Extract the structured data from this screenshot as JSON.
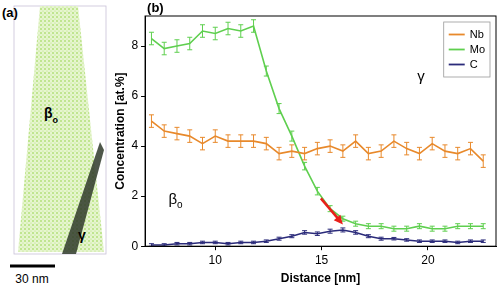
{
  "panel_a": {
    "label": "(a)",
    "phase_labels": [
      "βo",
      "γ"
    ],
    "scale_bar": "30 nm"
  },
  "chart_data": {
    "type": "line",
    "panel_label": "(b)",
    "x_label": "Distance [nm]",
    "y_label": "Concentration [at.%]",
    "x": [
      7.0,
      7.6,
      8.2,
      8.8,
      9.4,
      10.0,
      10.6,
      11.2,
      11.8,
      12.4,
      13.0,
      13.6,
      14.2,
      14.8,
      15.4,
      16.0,
      16.6,
      17.2,
      17.8,
      18.4,
      19.0,
      19.6,
      20.2,
      20.8,
      21.4,
      22.0,
      22.6
    ],
    "series": [
      {
        "name": "Nb",
        "color": "#e8892b",
        "values": [
          5.0,
          4.6,
          4.5,
          4.4,
          4.1,
          4.4,
          4.2,
          4.2,
          4.2,
          4.1,
          3.7,
          3.8,
          3.7,
          3.9,
          4.0,
          3.8,
          4.2,
          3.7,
          3.8,
          4.2,
          3.9,
          3.7,
          4.1,
          3.8,
          3.7,
          3.9,
          3.4
        ],
        "errors": [
          0.25,
          0.25,
          0.25,
          0.25,
          0.25,
          0.25,
          0.25,
          0.25,
          0.25,
          0.25,
          0.25,
          0.25,
          0.25,
          0.25,
          0.25,
          0.25,
          0.25,
          0.25,
          0.25,
          0.25,
          0.25,
          0.25,
          0.25,
          0.25,
          0.25,
          0.25,
          0.25
        ]
      },
      {
        "name": "Mo",
        "color": "#5fcf4f",
        "values": [
          8.3,
          7.9,
          8.0,
          8.1,
          8.6,
          8.5,
          8.7,
          8.6,
          8.8,
          7.0,
          5.5,
          4.4,
          3.2,
          2.2,
          1.5,
          1.1,
          0.9,
          0.8,
          0.8,
          0.7,
          0.7,
          0.8,
          0.7,
          0.7,
          0.8,
          0.8,
          0.8
        ],
        "errors": [
          0.25,
          0.25,
          0.25,
          0.25,
          0.25,
          0.25,
          0.25,
          0.25,
          0.25,
          0.2,
          0.2,
          0.2,
          0.15,
          0.15,
          0.12,
          0.1,
          0.1,
          0.1,
          0.1,
          0.1,
          0.1,
          0.1,
          0.1,
          0.1,
          0.1,
          0.1,
          0.1
        ]
      },
      {
        "name": "C",
        "color": "#2b2b7a",
        "values": [
          0.05,
          0.05,
          0.1,
          0.1,
          0.15,
          0.15,
          0.1,
          0.15,
          0.15,
          0.2,
          0.3,
          0.4,
          0.55,
          0.5,
          0.6,
          0.65,
          0.55,
          0.4,
          0.3,
          0.3,
          0.25,
          0.2,
          0.2,
          0.2,
          0.15,
          0.2,
          0.2
        ],
        "errors": [
          0.05,
          0.05,
          0.05,
          0.05,
          0.05,
          0.05,
          0.05,
          0.05,
          0.05,
          0.05,
          0.06,
          0.06,
          0.07,
          0.07,
          0.08,
          0.08,
          0.07,
          0.06,
          0.06,
          0.05,
          0.05,
          0.05,
          0.05,
          0.05,
          0.05,
          0.05,
          0.05
        ]
      }
    ],
    "xlim": [
      6.7,
      23.2
    ],
    "xticks": [
      10,
      15,
      20
    ],
    "ylim": [
      0,
      9.2
    ],
    "yticks": [
      0,
      2,
      4,
      6,
      8
    ],
    "grid": false,
    "legend": "top-right",
    "annotations": [
      {
        "text": "βo",
        "x": 7.8,
        "y": 1.7
      },
      {
        "text": "γ",
        "x": 19.5,
        "y": 6.6
      }
    ],
    "arrow": {
      "x": 16.0,
      "y": 0.75,
      "color": "#e8201a"
    }
  }
}
